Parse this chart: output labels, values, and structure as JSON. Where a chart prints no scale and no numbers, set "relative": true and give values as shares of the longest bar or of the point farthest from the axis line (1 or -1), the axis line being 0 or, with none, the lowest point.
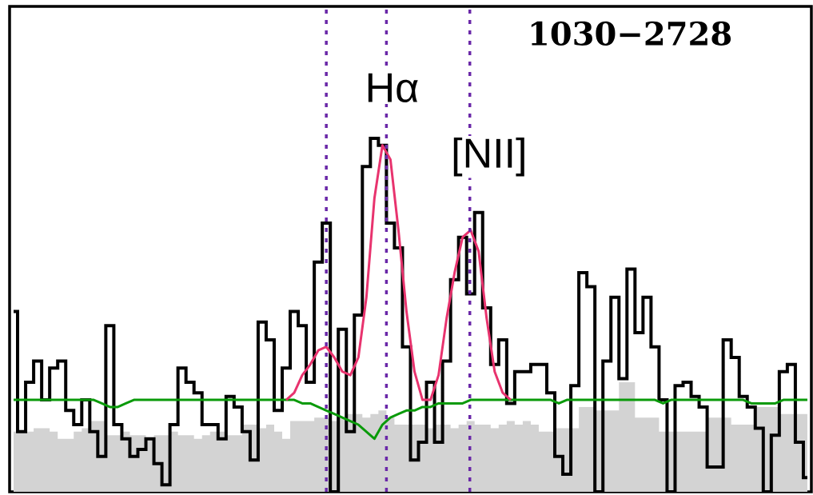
{
  "chart_data": {
    "type": "step",
    "relative": true,
    "title": "1030−2728",
    "categories": [
      null,
      null,
      null,
      null,
      null,
      null,
      null,
      null,
      null,
      null,
      null,
      null,
      null,
      null,
      null,
      null,
      null,
      null,
      null,
      null,
      null,
      null,
      null,
      null,
      null,
      null,
      null,
      null,
      null,
      null,
      null,
      null,
      null,
      null,
      null,
      null,
      null,
      null,
      null,
      null,
      null,
      null,
      null,
      null,
      null,
      null,
      null,
      null,
      null,
      null,
      null,
      null,
      null,
      null,
      null,
      null,
      null,
      null,
      null,
      null,
      null,
      null,
      null,
      null,
      null,
      null,
      null,
      null,
      null,
      null,
      null,
      null,
      null,
      null,
      null,
      null,
      null,
      null,
      null,
      null,
      null,
      null,
      null,
      null,
      null,
      null,
      null,
      null,
      null,
      null,
      null,
      null,
      null,
      null,
      null,
      null,
      null,
      null,
      null,
      null
    ],
    "series": [
      {
        "type": "area",
        "color": "#d3d3d3",
        "values": [
          0.17,
          0.17,
          0.17,
          0.18,
          0.18,
          0.17,
          0.15,
          0.15,
          0.17,
          0.18,
          0.2,
          0.2,
          0.16,
          0.16,
          0.17,
          0.16,
          0.16,
          0.15,
          0.16,
          0.16,
          0.17,
          0.16,
          0.16,
          0.15,
          0.16,
          0.17,
          0.17,
          0.16,
          0.16,
          0.19,
          0.19,
          0.18,
          0.19,
          0.17,
          0.15,
          0.2,
          0.2,
          0.2,
          0.21,
          0.21,
          0.2,
          0.21,
          0.22,
          0.22,
          0.21,
          0.22,
          0.23,
          0.21,
          0.19,
          0.19,
          0.19,
          0.19,
          0.18,
          0.19,
          0.19,
          0.18,
          0.19,
          0.2,
          0.19,
          0.19,
          0.18,
          0.19,
          0.2,
          0.19,
          0.2,
          0.19,
          0.17,
          0.17,
          0.18,
          0.18,
          0.18,
          0.24,
          0.24,
          0.23,
          0.23,
          0.23,
          0.31,
          0.31,
          0.21,
          0.21,
          0.21,
          0.17,
          0.17,
          0.17,
          0.17,
          0.17,
          0.17,
          0.21,
          0.21,
          0.21,
          0.19,
          0.19,
          0.19,
          0.24,
          0.24,
          0.24,
          0.22,
          0.22,
          0.22,
          0.22
        ]
      },
      {
        "color": "#000000",
        "values": [
          0.51,
          0.17,
          0.31,
          0.37,
          0.26,
          0.35,
          0.37,
          0.23,
          0.19,
          0.26,
          0.17,
          0.1,
          0.47,
          0.19,
          0.15,
          0.1,
          0.12,
          0.15,
          0.08,
          0.02,
          0.19,
          0.35,
          0.31,
          0.28,
          0.19,
          0.19,
          0.15,
          0.27,
          0.24,
          0.17,
          0.09,
          0.48,
          0.43,
          0.23,
          0.35,
          0.51,
          0.47,
          0.31,
          0.65,
          0.76,
          0.0,
          0.46,
          0.17,
          0.5,
          0.92,
          1,
          0.98,
          0.76,
          0.69,
          0.41,
          0.09,
          0.14,
          0.31,
          0.14,
          0.37,
          0.6,
          0.72,
          0.56,
          0.79,
          0.52,
          0.36,
          0.43,
          0.25,
          0.34,
          0.34,
          0.36,
          0.36,
          0.28,
          0.1,
          0.05,
          0.3,
          0.62,
          0.58,
          0.0,
          0.37,
          0.55,
          0.32,
          0.63,
          0.45,
          0.55,
          0.41,
          0.26,
          0.0,
          0.3,
          0.31,
          0.27,
          0.24,
          0.07,
          0.07,
          0.43,
          0.38,
          0.27,
          0.24,
          0.18,
          0.0,
          0.16,
          0.34,
          0.36,
          0.14,
          0.04
        ]
      },
      {
        "type": "line",
        "color": "#0a9a0a",
        "values": [
          0.26,
          0.26,
          0.26,
          0.26,
          0.26,
          0.26,
          0.26,
          0.26,
          0.26,
          0.26,
          0.26,
          0.25,
          0.24,
          0.24,
          0.25,
          0.26,
          0.26,
          0.26,
          0.26,
          0.26,
          0.26,
          0.26,
          0.26,
          0.26,
          0.26,
          0.26,
          0.26,
          0.26,
          0.26,
          0.26,
          0.26,
          0.26,
          0.26,
          0.26,
          0.26,
          0.26,
          0.25,
          0.25,
          0.24,
          0.23,
          0.22,
          0.21,
          0.2,
          0.19,
          0.17,
          0.15,
          0.19,
          0.21,
          0.22,
          0.23,
          0.23,
          0.24,
          0.24,
          0.25,
          0.25,
          0.25,
          0.25,
          0.26,
          0.26,
          0.26,
          0.26,
          0.26,
          0.26,
          0.26,
          0.26,
          0.26,
          0.26,
          0.26,
          0.25,
          0.26,
          0.26,
          0.26,
          0.26,
          0.26,
          0.26,
          0.26,
          0.26,
          0.26,
          0.26,
          0.26,
          0.26,
          0.25,
          0.26,
          0.26,
          0.26,
          0.26,
          0.26,
          0.26,
          0.26,
          0.26,
          0.26,
          0.26,
          0.25,
          0.25,
          0.25,
          0.25,
          0.26,
          0.26,
          0.26,
          0.26
        ]
      },
      {
        "type": "line",
        "color": "#e8336e",
        "values": [
          null,
          null,
          null,
          null,
          null,
          null,
          null,
          null,
          null,
          null,
          null,
          null,
          null,
          null,
          null,
          null,
          null,
          null,
          null,
          null,
          null,
          null,
          null,
          null,
          null,
          null,
          null,
          null,
          null,
          null,
          null,
          null,
          null,
          null,
          0.26,
          0.28,
          0.33,
          0.36,
          0.4,
          0.41,
          0.38,
          0.34,
          0.33,
          0.38,
          0.55,
          0.83,
          0.98,
          0.94,
          0.74,
          0.51,
          0.34,
          0.26,
          0.26,
          0.33,
          0.49,
          0.62,
          0.72,
          0.74,
          0.68,
          0.49,
          0.34,
          0.28,
          0.26,
          null,
          null,
          null,
          null,
          null,
          null,
          null,
          null,
          null,
          null,
          null,
          null,
          null,
          null,
          null,
          null,
          null,
          null,
          null,
          null,
          null,
          null,
          null,
          null,
          null,
          null,
          null,
          null,
          null,
          null,
          null,
          null,
          null,
          null,
          null,
          null,
          null
        ]
      }
    ],
    "annotations": [
      "Hα",
      "[NII]"
    ],
    "tick_labels": false
  }
}
